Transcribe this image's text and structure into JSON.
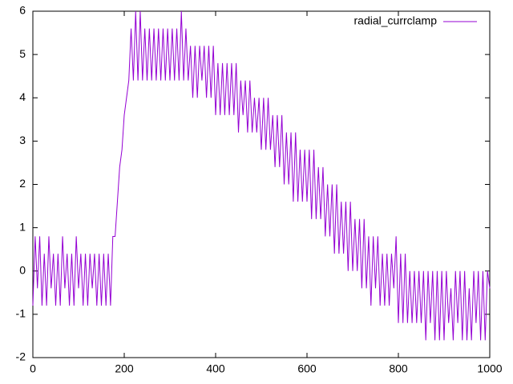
{
  "chart_data": {
    "type": "line",
    "x": [
      0,
      5,
      10,
      15,
      20,
      25,
      30,
      35,
      40,
      45,
      50,
      55,
      60,
      65,
      70,
      75,
      80,
      85,
      90,
      95,
      100,
      105,
      110,
      115,
      120,
      125,
      130,
      135,
      140,
      145,
      150,
      155,
      160,
      165,
      170,
      175,
      180,
      185,
      190,
      195,
      200,
      205,
      210,
      215,
      220,
      225,
      230,
      235,
      240,
      245,
      250,
      255,
      260,
      265,
      270,
      275,
      280,
      285,
      290,
      295,
      300,
      305,
      310,
      315,
      320,
      325,
      330,
      335,
      340,
      345,
      350,
      355,
      360,
      365,
      370,
      375,
      380,
      385,
      390,
      395,
      400,
      405,
      410,
      415,
      420,
      425,
      430,
      435,
      440,
      445,
      450,
      455,
      460,
      465,
      470,
      475,
      480,
      485,
      490,
      495,
      500,
      505,
      510,
      515,
      520,
      525,
      530,
      535,
      540,
      545,
      550,
      555,
      560,
      565,
      570,
      575,
      580,
      585,
      590,
      595,
      600,
      605,
      610,
      615,
      620,
      625,
      630,
      635,
      640,
      645,
      650,
      655,
      660,
      665,
      670,
      675,
      680,
      685,
      690,
      695,
      700,
      705,
      710,
      715,
      720,
      725,
      730,
      735,
      740,
      745,
      750,
      755,
      760,
      765,
      770,
      775,
      780,
      785,
      790,
      795,
      800,
      805,
      810,
      815,
      820,
      825,
      830,
      835,
      840,
      845,
      850,
      855,
      860,
      865,
      870,
      875,
      880,
      885,
      890,
      895,
      900,
      905,
      910,
      915,
      920,
      925,
      930,
      935,
      940,
      945,
      950,
      955,
      960,
      965,
      970,
      975,
      980,
      985,
      990,
      995,
      1000
    ],
    "series": [
      {
        "name": "radial_currclamp",
        "color": "#9400d3",
        "values": [
          -0.8,
          0.8,
          -0.4,
          0.8,
          -0.8,
          0.4,
          -0.8,
          0.8,
          -0.4,
          0.4,
          -0.8,
          0.4,
          -0.8,
          0.8,
          -0.4,
          0.4,
          -0.8,
          0.4,
          -0.8,
          0.8,
          -0.4,
          0.4,
          -0.8,
          0.4,
          -0.8,
          0.4,
          -0.4,
          0.4,
          -0.8,
          0.4,
          -0.8,
          0.4,
          -0.8,
          0.4,
          -0.8,
          0.8,
          0.8,
          1.6,
          2.4,
          2.8,
          3.6,
          4.0,
          4.4,
          5.6,
          4.4,
          6,
          4.4,
          6,
          4.4,
          5.6,
          4.4,
          5.6,
          4.4,
          5.6,
          4.4,
          5.6,
          4.4,
          5.6,
          4.4,
          5.6,
          4.4,
          5.6,
          4.4,
          5.6,
          4.4,
          6,
          4.4,
          5.6,
          4.4,
          5.2,
          4.0,
          5.2,
          4.0,
          5.2,
          4.4,
          5.2,
          4.0,
          5.2,
          4.0,
          5.2,
          3.6,
          4.8,
          3.6,
          4.8,
          3.6,
          4.8,
          3.6,
          4.8,
          3.6,
          4.8,
          3.2,
          4.4,
          3.6,
          4.4,
          3.2,
          4.4,
          3.2,
          4.0,
          3.2,
          4.0,
          2.8,
          4.0,
          2.8,
          4.0,
          2.8,
          3.6,
          2.4,
          3.6,
          2.4,
          3.6,
          2.0,
          3.2,
          2.0,
          3.2,
          1.6,
          3.2,
          1.6,
          2.8,
          1.6,
          2.8,
          1.6,
          2.8,
          1.2,
          2.8,
          1.2,
          2.4,
          1.2,
          2.4,
          0.8,
          2.0,
          0.8,
          2.0,
          0.4,
          2.0,
          0.4,
          1.6,
          0.4,
          1.6,
          0,
          1.6,
          0,
          1.2,
          0,
          1.2,
          -0.4,
          1.2,
          -0.4,
          0.8,
          -0.8,
          0.8,
          -0.4,
          0.8,
          -0.8,
          0.4,
          -0.8,
          0.4,
          -0.8,
          0.4,
          -0.4,
          0.8,
          -1.2,
          0.4,
          -1.2,
          0.4,
          -1.2,
          0,
          -1.2,
          0,
          -1.2,
          0,
          -1.2,
          0,
          -1.6,
          0,
          -1.2,
          0,
          -1.6,
          0,
          -1.6,
          0,
          -1.6,
          0,
          -1.2,
          -0.4,
          -1.6,
          0,
          -1.2,
          0,
          -1.6,
          0,
          -1.6,
          -0.4,
          -1.6,
          0,
          -1.2,
          0,
          -1.6,
          0,
          -1.6,
          0,
          -0.4
        ]
      }
    ],
    "xlim": [
      0,
      1000
    ],
    "xticks": [
      0,
      200,
      400,
      600,
      800,
      1000
    ],
    "ylim": [
      -2,
      6
    ],
    "yticks": [
      -2,
      -1,
      0,
      1,
      2,
      3,
      4,
      5,
      6
    ],
    "legend": "top-right"
  }
}
